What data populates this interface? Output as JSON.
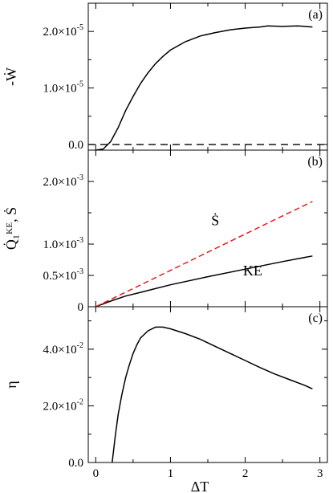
{
  "chart_data": [
    {
      "type": "line",
      "panel_label": "(a)",
      "ylabel": "-Ẇ",
      "xlim": [
        -0.1,
        3.1
      ],
      "ylim": [
        -1e-06,
        2.5e-05
      ],
      "yticks": [
        {
          "value": 0,
          "mantissa": "0.0",
          "exp": ""
        },
        {
          "value": 1e-05,
          "mantissa": "1.0×10",
          "exp": "-5"
        },
        {
          "value": 2e-05,
          "mantissa": "2.0×10",
          "exp": "-5"
        }
      ],
      "minor_yticks": [
        5e-06,
        1.5e-05
      ],
      "reference_line": {
        "y": 0,
        "style": "dashed"
      },
      "series": [
        {
          "color": "#000000",
          "dash": "solid",
          "x": [
            0.0,
            0.1,
            0.2,
            0.3,
            0.4,
            0.5,
            0.6,
            0.7,
            0.8,
            0.9,
            1.0,
            1.2,
            1.4,
            1.6,
            1.8,
            2.0,
            2.2,
            2.3,
            2.5,
            2.7,
            2.9
          ],
          "y": [
            -1e-06,
            -8e-07,
            5e-07,
            3e-06,
            6e-06,
            8.5e-06,
            1.08e-05,
            1.27e-05,
            1.43e-05,
            1.56e-05,
            1.67e-05,
            1.82e-05,
            1.92e-05,
            1.98e-05,
            2.03e-05,
            2.06e-05,
            2.08e-05,
            2.1e-05,
            2.09e-05,
            2.1e-05,
            2.08e-05
          ]
        }
      ]
    },
    {
      "type": "line",
      "panel_label": "(b)",
      "ylabel": "Q̇₁ᴷᴱ, Ṡ",
      "xlim": [
        -0.1,
        3.1
      ],
      "ylim": [
        0,
        0.0025
      ],
      "yticks": [
        {
          "value": 0,
          "mantissa": "0",
          "exp": ""
        },
        {
          "value": 0.0005,
          "mantissa": "0.5×10",
          "exp": "-3"
        },
        {
          "value": 0.001,
          "mantissa": "1.0×10",
          "exp": "-3"
        },
        {
          "value": 0.002,
          "mantissa": "2.0×10",
          "exp": "-3"
        }
      ],
      "minor_yticks": [
        0.0015
      ],
      "annotations": [
        {
          "text": "Ṡ",
          "x": 1.6,
          "y": 0.0013
        },
        {
          "text": "KE",
          "x": 2.1,
          "y": 0.0005
        }
      ],
      "series": [
        {
          "color": "#000000",
          "dash": "solid",
          "x": [
            0.0,
            0.2,
            0.4,
            0.6,
            0.8,
            1.0,
            1.5,
            2.0,
            2.5,
            2.9
          ],
          "y": [
            0.0,
            9e-05,
            0.00017,
            0.00023,
            0.00029,
            0.00035,
            0.00048,
            0.0006,
            0.00072,
            0.00081
          ]
        },
        {
          "color": "#e31a1c",
          "dash": "dashed",
          "x": [
            0.0,
            0.5,
            1.0,
            1.5,
            2.0,
            2.5,
            2.9
          ],
          "y": [
            0.0,
            0.00029,
            0.00058,
            0.00087,
            0.00116,
            0.00145,
            0.00168
          ]
        }
      ]
    },
    {
      "type": "line",
      "panel_label": "(c)",
      "ylabel": "η",
      "xlabel": "ΔT",
      "xlim": [
        -0.1,
        3.1
      ],
      "ylim": [
        0,
        0.055
      ],
      "yticks": [
        {
          "value": 0,
          "mantissa": "0.0",
          "exp": ""
        },
        {
          "value": 0.02,
          "mantissa": "2.0×10",
          "exp": "-2"
        },
        {
          "value": 0.04,
          "mantissa": "4.0×10",
          "exp": "-2"
        }
      ],
      "minor_yticks": [
        0.01,
        0.03,
        0.05
      ],
      "xticks": [
        {
          "value": 0,
          "label": "0"
        },
        {
          "value": 1,
          "label": "1"
        },
        {
          "value": 2,
          "label": "2"
        },
        {
          "value": 3,
          "label": "3"
        }
      ],
      "series": [
        {
          "color": "#000000",
          "dash": "solid",
          "x": [
            0.22,
            0.26,
            0.3,
            0.35,
            0.4,
            0.45,
            0.5,
            0.55,
            0.6,
            0.7,
            0.8,
            0.9,
            1.0,
            1.2,
            1.4,
            1.6,
            1.8,
            2.0,
            2.2,
            2.4,
            2.6,
            2.8,
            2.9
          ],
          "y": [
            0.0,
            0.009,
            0.017,
            0.024,
            0.03,
            0.0345,
            0.0385,
            0.0415,
            0.044,
            0.0465,
            0.0478,
            0.0478,
            0.0472,
            0.0455,
            0.0435,
            0.041,
            0.0385,
            0.036,
            0.0335,
            0.0312,
            0.0292,
            0.0272,
            0.026
          ]
        }
      ]
    }
  ]
}
